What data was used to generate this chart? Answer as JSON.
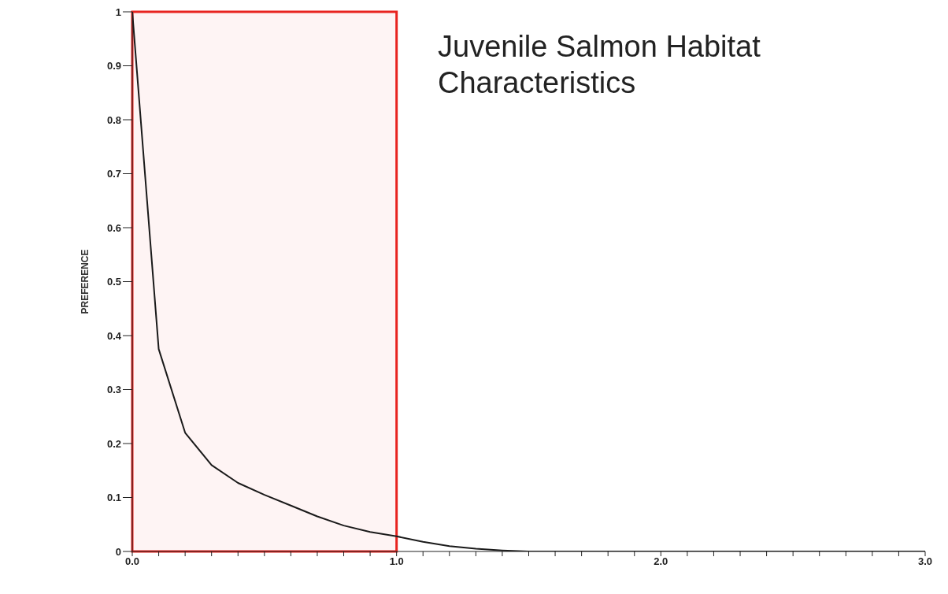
{
  "chart_data": {
    "type": "line",
    "title": "Juvenile Salmon Habitat Characteristics",
    "ylabel": "PREFERENCE",
    "x": [
      0,
      0.1,
      0.2,
      0.3,
      0.4,
      0.5,
      0.6,
      0.7,
      0.8,
      0.9,
      1.0,
      1.1,
      1.2,
      1.3,
      1.4,
      1.5,
      2.0,
      2.5,
      3.0
    ],
    "series": [
      {
        "color": "#1a1a1a",
        "values": [
          1.0,
          0.375,
          0.22,
          0.16,
          0.127,
          0.105,
          0.085,
          0.065,
          0.048,
          0.036,
          0.028,
          0.018,
          0.01,
          0.005,
          0.002,
          0,
          0,
          0,
          0
        ]
      }
    ],
    "xlim": [
      0,
      3
    ],
    "ylim": [
      0,
      1
    ],
    "xticks": [
      {
        "value": 0,
        "label": "0.0"
      },
      {
        "value": 0.1,
        "label": null
      },
      {
        "value": 0.2,
        "label": null
      },
      {
        "value": 0.3,
        "label": null
      },
      {
        "value": 0.4,
        "label": null
      },
      {
        "value": 0.5,
        "label": null
      },
      {
        "value": 0.6,
        "label": null
      },
      {
        "value": 0.7,
        "label": null
      },
      {
        "value": 0.8,
        "label": null
      },
      {
        "value": 0.9,
        "label": null
      },
      {
        "value": 1,
        "label": "1.0"
      },
      {
        "value": 1.1,
        "label": null
      },
      {
        "value": 1.2,
        "label": null
      },
      {
        "value": 1.3,
        "label": null
      },
      {
        "value": 1.4,
        "label": null
      },
      {
        "value": 1.5,
        "label": null
      },
      {
        "value": 1.6,
        "label": null
      },
      {
        "value": 1.7,
        "label": null
      },
      {
        "value": 1.8,
        "label": null
      },
      {
        "value": 1.9,
        "label": null
      },
      {
        "value": 2,
        "label": "2.0"
      },
      {
        "value": 2.1,
        "label": null
      },
      {
        "value": 2.2,
        "label": null
      },
      {
        "value": 2.3,
        "label": null
      },
      {
        "value": 2.4,
        "label": null
      },
      {
        "value": 2.5,
        "label": null
      },
      {
        "value": 2.6,
        "label": null
      },
      {
        "value": 2.7,
        "label": null
      },
      {
        "value": 2.8,
        "label": null
      },
      {
        "value": 2.9,
        "label": null
      },
      {
        "value": 3,
        "label": "3.0"
      }
    ],
    "yticks": [
      0,
      0.1,
      0.2,
      0.3,
      0.4,
      0.5,
      0.6,
      0.7,
      0.8,
      0.9,
      1
    ],
    "bands": [
      {
        "axis": "x",
        "from": 0,
        "to": 1,
        "color": "#e8231f"
      }
    ]
  }
}
